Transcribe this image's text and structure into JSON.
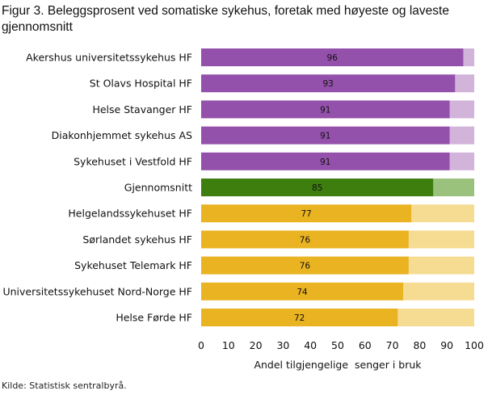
{
  "chart_data": {
    "type": "bar",
    "orientation": "horizontal",
    "stacked": true,
    "title": "Figur 3. Beleggsprosent ved somatiske sykehus, foretak med høyeste og laveste gjennomsnitt",
    "xlabel": "Andel tilgjengelige  senger i bruk",
    "ylabel": "",
    "xlim": [
      0,
      100
    ],
    "xticks": [
      "0",
      "10",
      "20",
      "30",
      "40",
      "50",
      "60",
      "70",
      "80",
      "90",
      "100"
    ],
    "grid": false,
    "legend": "none",
    "categories": [
      "Akershus universitetssykehus HF",
      "St Olavs Hospital HF",
      "Helse Stavanger HF",
      "Diakonhjemmet sykehus AS",
      "Sykehuset i Vestfold HF",
      "Gjennomsnitt",
      "Helgelandssykehuset HF",
      "Sørlandet sykehus HF",
      "Sykehuset Telemark HF",
      "Universitetssykehuset Nord-Norge HF",
      "Helse Førde HF"
    ],
    "values": [
      96,
      93,
      91,
      91,
      91,
      85,
      77,
      76,
      76,
      74,
      72
    ],
    "value_labels": [
      "96",
      "93",
      "91",
      "91",
      "91",
      "85",
      "77",
      "76",
      "76",
      "74",
      "72"
    ],
    "remainder_total": 100,
    "groups": [
      "high",
      "high",
      "high",
      "high",
      "high",
      "average",
      "low",
      "low",
      "low",
      "low",
      "low"
    ],
    "colors": {
      "high": {
        "main": "#9451ab",
        "light": "#d2b3da"
      },
      "average": {
        "main": "#3d7e0f",
        "light": "#9bc27d"
      },
      "low": {
        "main": "#eab322",
        "light": "#f6dc93"
      }
    },
    "source": "Kilde: Statistisk sentralbyrå."
  }
}
